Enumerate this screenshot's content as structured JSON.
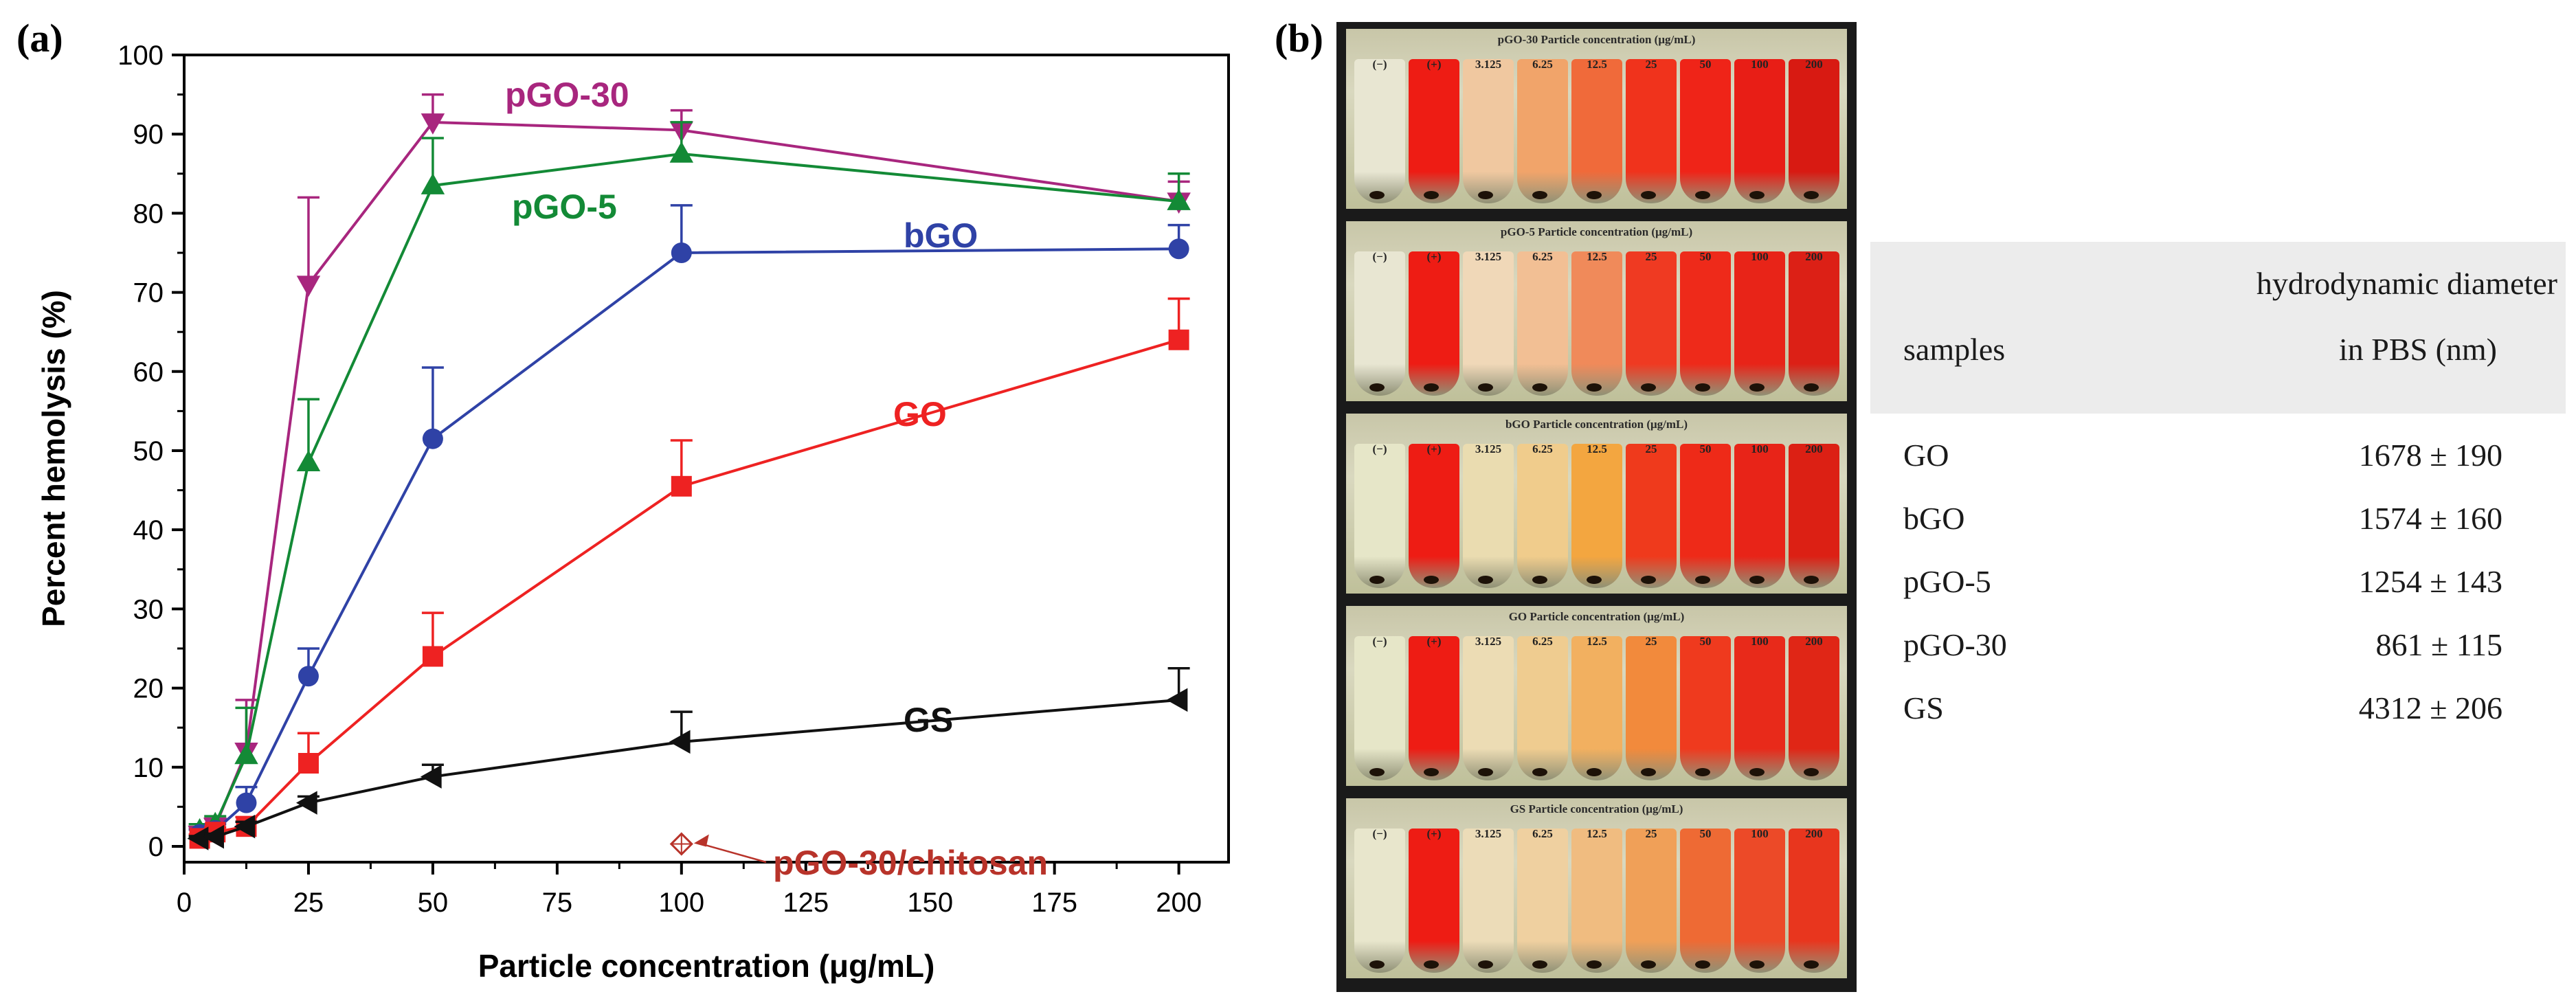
{
  "panel_a_label": "(a)",
  "panel_b_label": "(b)",
  "chart_data": {
    "type": "line",
    "xlabel": "Particle concentration (μg/mL)",
    "ylabel": "Percent hemolysis (%)",
    "xlim": [
      0,
      210
    ],
    "ylim": [
      -2,
      100
    ],
    "xticks": [
      0,
      25,
      50,
      75,
      100,
      125,
      150,
      175,
      200
    ],
    "yticks": [
      0,
      10,
      20,
      30,
      40,
      50,
      60,
      70,
      80,
      90,
      100
    ],
    "x": [
      3.125,
      6.25,
      12.5,
      25,
      50,
      100,
      200
    ],
    "series": [
      {
        "name": "pGO-30",
        "color": "#a8267e",
        "marker": "triangle-down",
        "values": [
          1.5,
          2.5,
          12,
          71,
          91.5,
          90.5,
          81.5
        ],
        "err": [
          0.8,
          1,
          6.5,
          11,
          3.5,
          2.5,
          2.5
        ]
      },
      {
        "name": "pGO-5",
        "color": "#138a36",
        "marker": "triangle-up",
        "values": [
          2,
          2.8,
          11.5,
          48.5,
          83.5,
          87.5,
          81.5
        ],
        "err": [
          0.8,
          1,
          6,
          8,
          6,
          4,
          3.5
        ]
      },
      {
        "name": "bGO",
        "color": "#2f42a6",
        "marker": "circle",
        "values": [
          1.5,
          2,
          5.5,
          21.5,
          51.5,
          75,
          75.5
        ],
        "err": [
          0.6,
          0.8,
          2,
          3.5,
          9,
          6,
          3
        ]
      },
      {
        "name": "GO",
        "color": "#ee2222",
        "marker": "square",
        "values": [
          1,
          1.8,
          2.5,
          10.5,
          24,
          45.5,
          64
        ],
        "err": [
          0.5,
          0.6,
          1.2,
          3.8,
          5.5,
          5.8,
          5.2
        ]
      },
      {
        "name": "GS",
        "color": "#111111",
        "marker": "triangle-left",
        "values": [
          1,
          1.2,
          2.5,
          5.5,
          8.8,
          13.2,
          18.5
        ],
        "err": [
          0.3,
          0.4,
          0.6,
          0.8,
          1.5,
          3.8,
          4
        ]
      },
      {
        "name": "pGO-30/chitosan",
        "color": "#b8332a",
        "marker": "open-diamond",
        "x": [
          100
        ],
        "values": [
          0.3
        ],
        "err": [
          0
        ]
      }
    ],
    "annotations": [
      {
        "text": "pGO-30",
        "color": "#a8267e"
      },
      {
        "text": "pGO-5",
        "color": "#138a36"
      },
      {
        "text": "bGO",
        "color": "#2f42a6"
      },
      {
        "text": "GO",
        "color": "#ee2222"
      },
      {
        "text": "GS",
        "color": "#111111"
      },
      {
        "text": "pGO-30/chitosan",
        "color": "#b8332a"
      }
    ]
  },
  "photos": {
    "strip_titles": [
      "pGO-30 Particle concentration (μg/mL)",
      "pGO-5 Particle concentration (μg/mL)",
      "bGO Particle concentration (μg/mL)",
      "GO Particle concentration (μg/mL)",
      "GS Particle concentration (μg/mL)"
    ],
    "tube_labels": [
      "(−)",
      "(+)",
      "3.125",
      "6.25",
      "12.5",
      "25",
      "50",
      "100",
      "200"
    ],
    "tube_colors": [
      [
        "#e8e6d2",
        "#ee1c14",
        "#f0c8a0",
        "#f1a46a",
        "#f06a3a",
        "#f0331c",
        "#ef2418",
        "#e81e16",
        "#d81a12"
      ],
      [
        "#e8e6d2",
        "#ee1c14",
        "#f0d8b8",
        "#f2bf94",
        "#f08a5a",
        "#ef3a22",
        "#ee2a1a",
        "#e82418",
        "#dc2016"
      ],
      [
        "#e6e6c8",
        "#ee1c14",
        "#eadcb0",
        "#f0cc8c",
        "#f3a640",
        "#ef3a1c",
        "#ee2a18",
        "#e82418",
        "#dc2014"
      ],
      [
        "#e6e6c8",
        "#ee1c14",
        "#ecdcb4",
        "#efcc90",
        "#f2b060",
        "#f28a3c",
        "#ef3a1e",
        "#e82a1a",
        "#e02616"
      ],
      [
        "#e8e6cc",
        "#ee1c14",
        "#ecdcb8",
        "#efd0a0",
        "#f0bc80",
        "#f0a058",
        "#ee6a34",
        "#ec4a28",
        "#e8361e"
      ]
    ]
  },
  "table": {
    "header_samples": "samples",
    "header_line1": "hydrodynamic diameter",
    "header_line2": "in PBS (nm)",
    "rows": [
      {
        "sample": "GO",
        "value": "1678 ± 190"
      },
      {
        "sample": "bGO",
        "value": "1574 ± 160"
      },
      {
        "sample": "pGO-5",
        "value": "1254 ± 143"
      },
      {
        "sample": "pGO-30",
        "value": "861 ± 115"
      },
      {
        "sample": "GS",
        "value": "4312 ± 206"
      }
    ]
  }
}
